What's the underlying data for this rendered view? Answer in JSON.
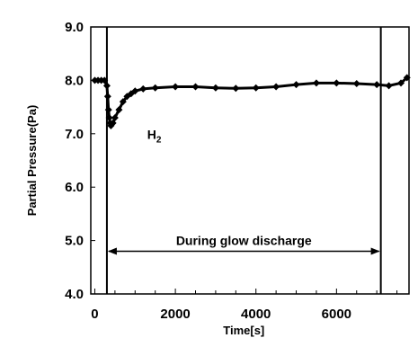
{
  "chart_data": {
    "type": "scatter",
    "xlabel": "Time[s]",
    "ylabel": "Partial Pressure(Pa)",
    "xlim": [
      -100,
      7800
    ],
    "ylim": [
      4.0,
      9.0
    ],
    "x_ticks": [
      "0",
      "2000",
      "4000",
      "6000"
    ],
    "x_tick_values": [
      0,
      2000,
      4000,
      6000
    ],
    "y_ticks": [
      "4.0",
      "5.0",
      "6.0",
      "7.0",
      "8.0",
      "9.0"
    ],
    "y_tick_values": [
      4.0,
      5.0,
      6.0,
      7.0,
      8.0,
      9.0
    ],
    "grid": false,
    "series": [
      {
        "name": "H2",
        "x": [
          0,
          80,
          160,
          240,
          300,
          320,
          340,
          360,
          380,
          400,
          450,
          500,
          600,
          700,
          800,
          900,
          1000,
          1200,
          1500,
          2000,
          2500,
          3000,
          3500,
          4000,
          4500,
          5000,
          5500,
          6000,
          6500,
          7000,
          7300,
          7600,
          7750
        ],
        "y": [
          8.0,
          8.0,
          8.0,
          8.0,
          7.9,
          7.7,
          7.45,
          7.3,
          7.2,
          7.15,
          7.2,
          7.3,
          7.45,
          7.6,
          7.7,
          7.75,
          7.8,
          7.84,
          7.86,
          7.88,
          7.88,
          7.86,
          7.85,
          7.86,
          7.88,
          7.92,
          7.95,
          7.95,
          7.94,
          7.92,
          7.9,
          7.95,
          8.05
        ]
      }
    ],
    "vlines": [
      300,
      7100
    ],
    "annotations": {
      "series_label_main": "H",
      "series_label_sub": "2",
      "series_label_x": 1300,
      "series_label_y": 6.9,
      "discharge_text": "During glow discharge",
      "discharge_text_x": 3700,
      "discharge_text_y": 5.0,
      "discharge_arrow_y": 4.8,
      "discharge_arrow_from": 300,
      "discharge_arrow_to": 7100
    }
  }
}
